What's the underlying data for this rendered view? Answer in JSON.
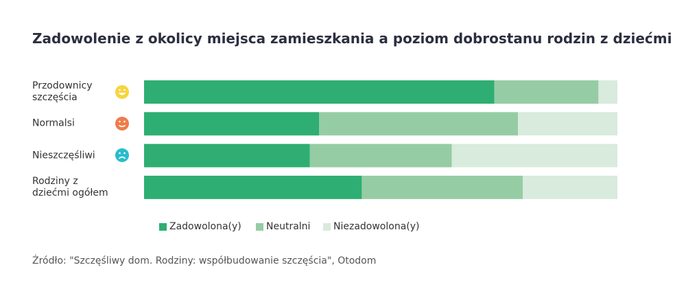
{
  "chart_data": {
    "type": "stacked_bar_horizontal",
    "title": "Zadowolenie z okolicy miejsca zamieszkania a poziom dobrostanu rodzin z dziećmi",
    "categories": [
      "Przodownicy szczęścia",
      "Normalsi",
      "Nieszczęśliwi",
      "Rodziny z dziećmi ogółem"
    ],
    "series": [
      {
        "name": "Zadowolona(y)",
        "color": "#2eae72",
        "values": [
          74,
          37,
          35,
          46
        ]
      },
      {
        "name": "Neutralni",
        "color": "#96cca4",
        "values": [
          22,
          42,
          30,
          34
        ]
      },
      {
        "name": "Niezadowolona(y)",
        "color": "#d8ebdd",
        "values": [
          4,
          21,
          35,
          20
        ]
      }
    ],
    "legend": "bottom",
    "source": "Źródło: \"Szczęśliwy dom. Rodziny: współbudowanie szczęścia\", Otodom"
  }
}
